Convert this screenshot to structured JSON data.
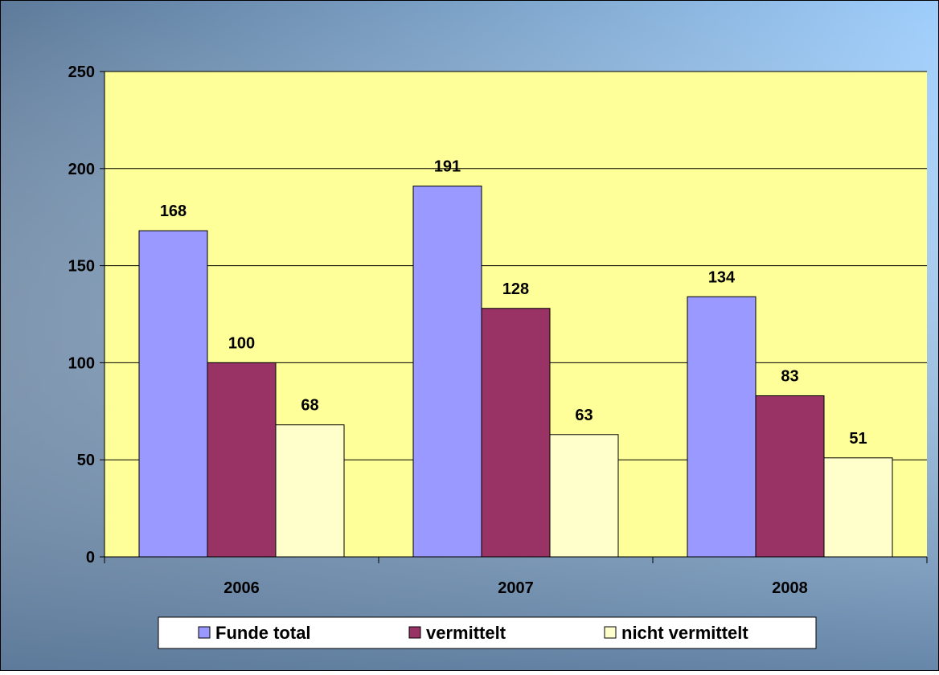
{
  "chart_data": {
    "type": "bar",
    "categories": [
      "2006",
      "2007",
      "2008"
    ],
    "series": [
      {
        "name": "Funde total",
        "values": [
          168,
          191,
          134
        ],
        "color": "#9999ff"
      },
      {
        "name": "vermittelt",
        "values": [
          100,
          128,
          83
        ],
        "color": "#993366"
      },
      {
        "name": "nicht vermittelt",
        "values": [
          68,
          63,
          51
        ],
        "color": "#ffffcc"
      }
    ],
    "ylim": [
      0,
      250
    ],
    "yticks": [
      0,
      50,
      100,
      150,
      200,
      250
    ],
    "grid": true,
    "legend_position": "bottom",
    "title": "",
    "xlabel": "",
    "ylabel": ""
  },
  "colors": {
    "background_left": "#5d7a9a",
    "background_right": "#9ecdfb",
    "plot_area": "#ffff99",
    "gridline": "#000000"
  }
}
